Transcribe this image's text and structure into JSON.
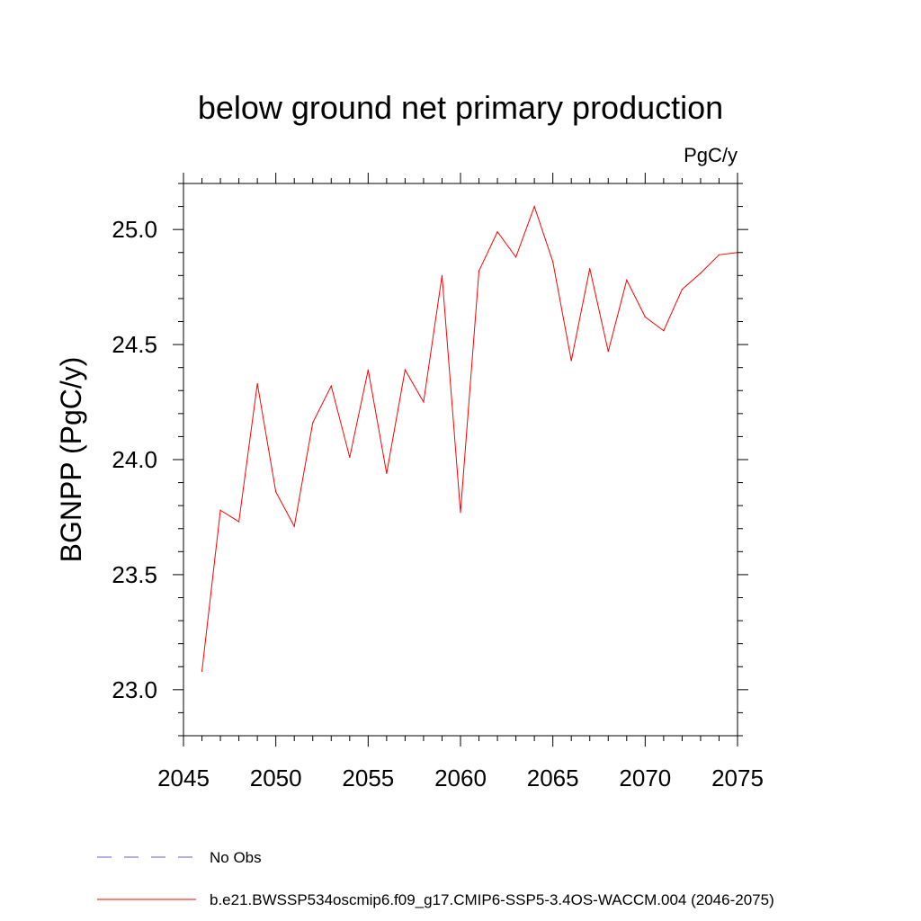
{
  "chart_data": {
    "type": "line",
    "title": "below ground net primary production",
    "units": "PgC/y",
    "xlabel": "",
    "ylabel": "BGNPP  (PgC/y)",
    "xlim": [
      2045,
      2075
    ],
    "ylim": [
      22.8,
      25.2
    ],
    "grid": false,
    "legend_placement": "bottom",
    "x_ticks": [
      2045,
      2050,
      2055,
      2060,
      2065,
      2070,
      2075
    ],
    "x_tick_labels": [
      "2045",
      "2050",
      "2055",
      "2060",
      "2065",
      "2070",
      "2075"
    ],
    "y_ticks": [
      23.0,
      23.5,
      24.0,
      24.5,
      25.0
    ],
    "y_tick_labels": [
      "23.0",
      "23.5",
      "24.0",
      "24.5",
      "25.0"
    ],
    "x": [
      2046,
      2047,
      2048,
      2049,
      2050,
      2051,
      2052,
      2053,
      2054,
      2055,
      2056,
      2057,
      2058,
      2059,
      2060,
      2061,
      2062,
      2063,
      2064,
      2065,
      2066,
      2067,
      2068,
      2069,
      2070,
      2071,
      2072,
      2073,
      2074,
      2075
    ],
    "series": [
      {
        "name": "b.e21.BWSSP534oscmip6.f09_g17.CMIP6-SSP5-3.4OS-WACCM.004 (2046-2075)",
        "color": "#ff0000",
        "values": [
          23.08,
          23.78,
          23.73,
          24.33,
          23.86,
          23.71,
          24.16,
          24.32,
          24.01,
          24.39,
          23.94,
          24.39,
          24.25,
          24.8,
          23.77,
          24.82,
          24.99,
          24.88,
          25.1,
          24.86,
          24.43,
          24.83,
          24.47,
          24.78,
          24.62,
          24.56,
          24.74,
          24.81,
          24.89,
          24.9
        ]
      }
    ],
    "legend": [
      {
        "label": "No Obs",
        "color": "#6a5acd",
        "style": "dashed"
      },
      {
        "label": "b.e21.BWSSP534oscmip6.f09_g17.CMIP6-SSP5-3.4OS-WACCM.004 (2046-2075)",
        "color": "#ff0000",
        "style": "solid"
      }
    ]
  }
}
